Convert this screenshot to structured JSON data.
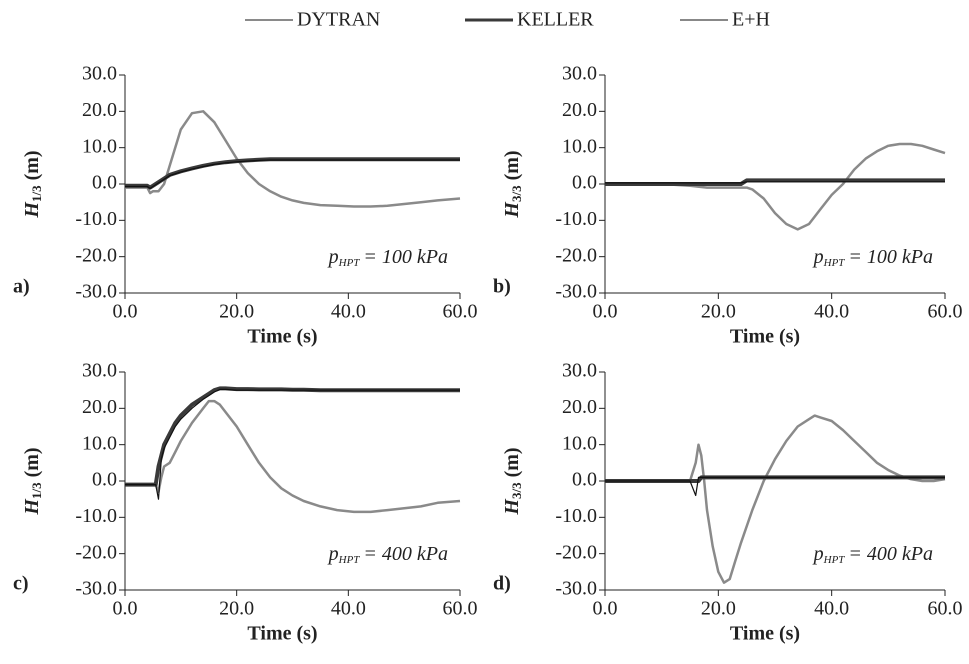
{
  "chart_data": [
    {
      "type": "line",
      "panel": "a)",
      "ylabel": {
        "symbol": "H",
        "subscript": "1/3",
        "unit": "(m)"
      },
      "xlabel": "Time (s)",
      "annotation": {
        "symbol": "p",
        "subscript": "HPT",
        "text": "= 100 kPa"
      },
      "xlim": [
        0,
        60
      ],
      "ylim": [
        -30,
        30
      ],
      "xticks": [
        {
          "value": 0,
          "label": "0.0"
        },
        {
          "value": 20,
          "label": "20.0"
        },
        {
          "value": 40,
          "label": "40.0"
        },
        {
          "value": 60,
          "label": "60.0"
        }
      ],
      "yticks": [
        {
          "value": -30,
          "label": "-30.0"
        },
        {
          "value": -20,
          "label": "-20.0"
        },
        {
          "value": -10,
          "label": "-10.0"
        },
        {
          "value": 0,
          "label": "0.0"
        },
        {
          "value": 10,
          "label": "10.0"
        },
        {
          "value": 20,
          "label": "20.0"
        },
        {
          "value": 30,
          "label": "30.0"
        }
      ],
      "x": [
        0,
        2,
        4,
        4.5,
        5,
        6,
        7,
        8,
        10,
        12,
        14,
        16,
        18,
        20,
        22,
        24,
        26,
        28,
        30,
        32,
        35,
        38,
        41,
        44,
        47,
        50,
        53,
        56,
        60
      ],
      "series": [
        {
          "name": "DYTRAN",
          "color": "#8a8a8a",
          "values": [
            -1,
            -1,
            -1,
            -2.5,
            -2,
            -2,
            0,
            5,
            15,
            19.5,
            20,
            17,
            12,
            7,
            3,
            0,
            -2,
            -3.5,
            -4.5,
            -5.2,
            -5.8,
            -6,
            -6.2,
            -6.2,
            -6,
            -5.5,
            -5,
            -4.5,
            -4
          ]
        },
        {
          "name": "KELLER",
          "color": "#3a3a3a",
          "values": [
            -0.5,
            -0.5,
            -0.5,
            -1,
            -0.5,
            0.5,
            1.5,
            2.5,
            3.5,
            4.3,
            5,
            5.6,
            6,
            6.3,
            6.5,
            6.7,
            6.8,
            6.8,
            6.8,
            6.8,
            6.8,
            6.8,
            6.8,
            6.8,
            6.8,
            6.8,
            6.8,
            6.8,
            6.8
          ]
        },
        {
          "name": "E+H",
          "color": "#111111",
          "values": [
            -0.7,
            -0.7,
            -0.7,
            -1.2,
            -0.7,
            0.3,
            1.3,
            2.3,
            3.3,
            4.1,
            4.8,
            5.4,
            5.8,
            6.1,
            6.3,
            6.5,
            6.6,
            6.6,
            6.6,
            6.6,
            6.6,
            6.6,
            6.6,
            6.6,
            6.6,
            6.6,
            6.6,
            6.6,
            6.6
          ]
        }
      ]
    },
    {
      "type": "line",
      "panel": "b)",
      "ylabel": {
        "symbol": "H",
        "subscript": "3/3",
        "unit": "(m)"
      },
      "xlabel": "Time (s)",
      "annotation": {
        "symbol": "p",
        "subscript": "HPT",
        "text": "= 100 kPa"
      },
      "xlim": [
        0,
        60
      ],
      "ylim": [
        -30,
        30
      ],
      "xticks": [
        {
          "value": 0,
          "label": "0.0"
        },
        {
          "value": 20,
          "label": "20.0"
        },
        {
          "value": 40,
          "label": "40.0"
        },
        {
          "value": 60,
          "label": "60.0"
        }
      ],
      "yticks": [
        {
          "value": -30,
          "label": "-30.0"
        },
        {
          "value": -20,
          "label": "-20.0"
        },
        {
          "value": -10,
          "label": "-10.0"
        },
        {
          "value": 0,
          "label": "0.0"
        },
        {
          "value": 10,
          "label": "10.0"
        },
        {
          "value": 20,
          "label": "20.0"
        },
        {
          "value": 30,
          "label": "30.0"
        }
      ],
      "x": [
        0,
        5,
        10,
        15,
        18,
        20,
        22,
        24,
        25,
        26,
        28,
        30,
        32,
        34,
        36,
        38,
        40,
        42,
        44,
        46,
        48,
        50,
        52,
        54,
        56,
        58,
        60
      ],
      "series": [
        {
          "name": "DYTRAN",
          "color": "#8a8a8a",
          "values": [
            0,
            0,
            0,
            -0.5,
            -1,
            -1,
            -1,
            -1,
            -1,
            -1.5,
            -4,
            -8,
            -11,
            -12.5,
            -11,
            -7,
            -3,
            0,
            4,
            7,
            9,
            10.5,
            11,
            11,
            10.5,
            9.5,
            8.5
          ]
        },
        {
          "name": "KELLER",
          "color": "#3a3a3a",
          "values": [
            0,
            0,
            0,
            0,
            0,
            0,
            0,
            0,
            1,
            1,
            1,
            1,
            1,
            1,
            1,
            1,
            1,
            1,
            1,
            1,
            1,
            1,
            1,
            1,
            1,
            1,
            1
          ]
        },
        {
          "name": "E+H",
          "color": "#111111",
          "values": [
            0.3,
            0.3,
            0.3,
            0.3,
            0.3,
            0.3,
            0.3,
            0.3,
            0.6,
            0.6,
            0.6,
            0.6,
            0.6,
            0.6,
            0.6,
            0.6,
            0.6,
            0.6,
            0.6,
            0.6,
            0.6,
            0.6,
            0.6,
            0.6,
            0.6,
            0.6,
            0.6
          ]
        }
      ]
    },
    {
      "type": "line",
      "panel": "c)",
      "ylabel": {
        "symbol": "H",
        "subscript": "1/3",
        "unit": "(m)"
      },
      "xlabel": "Time (s)",
      "annotation": {
        "symbol": "p",
        "subscript": "HPT",
        "text": "= 400 kPa"
      },
      "xlim": [
        0,
        60
      ],
      "ylim": [
        -30,
        30
      ],
      "xticks": [
        {
          "value": 0,
          "label": "0.0"
        },
        {
          "value": 20,
          "label": "20.0"
        },
        {
          "value": 40,
          "label": "40.0"
        },
        {
          "value": 60,
          "label": "60.0"
        }
      ],
      "yticks": [
        {
          "value": -30,
          "label": "-30.0"
        },
        {
          "value": -20,
          "label": "-20.0"
        },
        {
          "value": -10,
          "label": "-10.0"
        },
        {
          "value": 0,
          "label": "0.0"
        },
        {
          "value": 10,
          "label": "10.0"
        },
        {
          "value": 20,
          "label": "20.0"
        },
        {
          "value": 30,
          "label": "30.0"
        }
      ],
      "x": [
        0,
        2,
        4,
        5.5,
        6,
        6.5,
        7,
        8,
        9,
        10,
        12,
        14,
        15,
        16,
        17,
        18,
        20,
        22,
        24,
        26,
        28,
        30,
        32,
        35,
        38,
        41,
        44,
        47,
        50,
        53,
        56,
        60
      ],
      "series": [
        {
          "name": "DYTRAN",
          "color": "#8a8a8a",
          "values": [
            -1,
            -1,
            -1,
            -1,
            -3,
            1,
            4,
            5,
            8,
            11,
            16,
            20,
            22,
            22,
            21,
            19,
            15,
            10,
            5,
            1,
            -2,
            -4,
            -5.5,
            -7,
            -8,
            -8.5,
            -8.5,
            -8,
            -7.5,
            -7,
            -6,
            -5.5
          ]
        },
        {
          "name": "KELLER",
          "color": "#3a3a3a",
          "values": [
            -1,
            -1,
            -1,
            -1,
            4,
            7,
            10,
            13,
            16,
            18,
            21,
            23,
            24,
            25,
            25.5,
            25.5,
            25.3,
            25.3,
            25.2,
            25.2,
            25.2,
            25.1,
            25.1,
            25,
            25,
            25,
            25,
            25,
            25,
            25,
            25,
            25
          ]
        },
        {
          "name": "E+H",
          "color": "#111111",
          "values": [
            -1,
            -1,
            -1,
            -1,
            -5,
            6,
            9,
            12,
            15,
            17,
            20,
            22.5,
            23.5,
            24.5,
            25.2,
            25.2,
            25,
            25,
            25,
            25,
            25,
            25,
            25,
            25,
            25,
            25,
            25,
            25,
            25,
            25,
            25,
            25
          ]
        }
      ]
    },
    {
      "type": "line",
      "panel": "d)",
      "ylabel": {
        "symbol": "H",
        "subscript": "3/3",
        "unit": "(m)"
      },
      "xlabel": "Time (s)",
      "annotation": {
        "symbol": "p",
        "subscript": "HPT",
        "text": "= 400 kPa"
      },
      "xlim": [
        0,
        60
      ],
      "ylim": [
        -30,
        30
      ],
      "xticks": [
        {
          "value": 0,
          "label": "0.0"
        },
        {
          "value": 20,
          "label": "20.0"
        },
        {
          "value": 40,
          "label": "40.0"
        },
        {
          "value": 60,
          "label": "60.0"
        }
      ],
      "yticks": [
        {
          "value": -30,
          "label": "-30.0"
        },
        {
          "value": -20,
          "label": "-20.0"
        },
        {
          "value": -10,
          "label": "-10.0"
        },
        {
          "value": 0,
          "label": "0.0"
        },
        {
          "value": 10,
          "label": "10.0"
        },
        {
          "value": 20,
          "label": "20.0"
        },
        {
          "value": 30,
          "label": "30.0"
        }
      ],
      "x": [
        0,
        5,
        10,
        15,
        16,
        16.5,
        17,
        17.5,
        18,
        19,
        20,
        21,
        22,
        23,
        24,
        26,
        28,
        30,
        32,
        34,
        36,
        37,
        38,
        40,
        42,
        44,
        46,
        48,
        50,
        52,
        54,
        56,
        58,
        60
      ],
      "series": [
        {
          "name": "DYTRAN",
          "color": "#8a8a8a",
          "values": [
            0,
            0,
            0,
            0,
            5,
            10,
            7,
            0,
            -8,
            -18,
            -25,
            -28,
            -27,
            -22,
            -17,
            -8,
            0,
            6,
            11,
            15,
            17,
            18,
            17.5,
            16.5,
            14,
            11,
            8,
            5,
            3,
            1.5,
            0.5,
            0,
            0,
            0.5
          ]
        },
        {
          "name": "KELLER",
          "color": "#3a3a3a",
          "values": [
            0,
            0,
            0,
            0,
            0,
            0,
            1,
            1,
            1,
            1,
            1,
            1,
            1,
            1,
            1,
            1,
            1,
            1,
            1,
            1,
            1,
            1,
            1,
            1,
            1,
            1,
            1,
            1,
            1,
            1,
            1,
            1,
            1,
            1
          ]
        },
        {
          "name": "E+H",
          "color": "#111111",
          "values": [
            0,
            0,
            0,
            0,
            -4,
            1,
            1,
            1,
            1,
            1,
            1,
            1,
            1,
            1,
            1,
            1,
            1,
            1,
            1,
            1,
            1,
            1,
            1,
            1,
            1,
            1,
            1,
            1,
            1,
            1,
            1,
            1,
            1,
            1
          ]
        }
      ]
    }
  ]
}
